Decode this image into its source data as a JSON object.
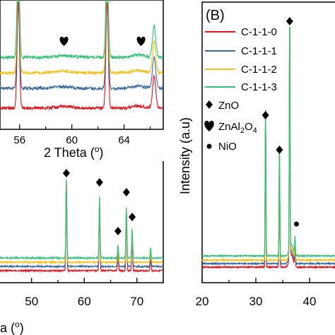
{
  "colors": {
    "C-1-1-0": "#e0121c",
    "C-1-1-1": "#3a6aa0",
    "C-1-1-2": "#f2c21b",
    "C-1-1-3": "#35c07a",
    "axis": "#000000"
  },
  "markers": {
    "ZnO": "diamond-icon",
    "ZnAl2O4": "heart-icon",
    "NiO": "circle-icon"
  },
  "chart_data": [
    {
      "panel": "A (partially visible, left)",
      "type": "line",
      "xlabel_visible_fragment": "a (o)",
      "x_ticks": [
        "50",
        "60",
        "70"
      ],
      "xlim": [
        44,
        75
      ],
      "series": [
        {
          "name": "C-1-1-0",
          "x": [
            44,
            56.6,
            62.9,
            66.4,
            68.0,
            69.1,
            72.6,
            75
          ],
          "y": [
            0.0,
            0.72,
            0.55,
            0.13,
            0.47,
            0.28,
            0.1,
            0.0
          ]
        },
        {
          "name": "C-1-1-1",
          "x": [
            44,
            56.6,
            62.9,
            66.4,
            68.0,
            69.1,
            72.6,
            75
          ],
          "y": [
            0.02,
            0.74,
            0.57,
            0.15,
            0.49,
            0.3,
            0.12,
            0.02
          ]
        },
        {
          "name": "C-1-1-2",
          "x": [
            44,
            56.6,
            62.9,
            66.4,
            68.0,
            69.1,
            72.6,
            75
          ],
          "y": [
            0.04,
            0.76,
            0.59,
            0.17,
            0.51,
            0.32,
            0.14,
            0.04
          ]
        },
        {
          "name": "C-1-1-3",
          "x": [
            44,
            56.6,
            62.9,
            66.4,
            68.0,
            69.1,
            72.6,
            75
          ],
          "y": [
            0.06,
            0.78,
            0.61,
            0.19,
            0.53,
            0.34,
            0.16,
            0.06
          ]
        }
      ],
      "annotations": [
        {
          "marker": "ZnO",
          "x": 56.6
        },
        {
          "marker": "ZnO",
          "x": 62.9
        },
        {
          "marker": "ZnO",
          "x": 66.4
        },
        {
          "marker": "ZnO",
          "x": 68.0
        },
        {
          "marker": "ZnO",
          "x": 69.1
        }
      ]
    },
    {
      "panel": "A inset",
      "type": "line",
      "xlabel": "2 Theta (o)",
      "x_ticks": [
        "56",
        "60",
        "64"
      ],
      "xlim": [
        54.5,
        67
      ],
      "series": [
        {
          "name": "C-1-1-0",
          "baseline": 0.2
        },
        {
          "name": "C-1-1-1",
          "baseline": 0.38
        },
        {
          "name": "C-1-1-2",
          "baseline": 0.52
        },
        {
          "name": "C-1-1-3",
          "baseline": 0.66
        }
      ],
      "peaks": [
        56.6,
        62.9,
        66.4
      ],
      "annotations": [
        {
          "marker": "ZnAl2O4",
          "x": 59.4
        },
        {
          "marker": "ZnAl2O4",
          "x": 65.3
        }
      ]
    },
    {
      "panel": "B",
      "type": "line",
      "panel_label": "(B)",
      "ylabel": "Intensity (a.u)",
      "x_ticks": [
        "20",
        "30",
        "40"
      ],
      "xlim": [
        20,
        45
      ],
      "legend": [
        "C-1-1-0",
        "C-1-1-1",
        "C-1-1-2",
        "C-1-1-3"
      ],
      "marker_legend": [
        {
          "marker": "ZnO",
          "label": "ZnO"
        },
        {
          "marker": "ZnAl2O4",
          "label": "ZnAl2O4"
        },
        {
          "marker": "NiO",
          "label": "NiO"
        }
      ],
      "peaks": [
        {
          "x": 31.8,
          "height": 0.62
        },
        {
          "x": 34.4,
          "height": 0.46
        },
        {
          "x": 36.3,
          "height": 0.98
        },
        {
          "x": 37.3,
          "height": 0.08
        }
      ],
      "annotations": [
        {
          "marker": "ZnO",
          "x": 31.8
        },
        {
          "marker": "ZnO",
          "x": 34.4
        },
        {
          "marker": "ZnO",
          "x": 36.3
        },
        {
          "marker": "NiO",
          "x": 37.3
        }
      ]
    }
  ],
  "labels": {
    "panel_b": "(B)",
    "ylabel_b": "Intensity (a.u)",
    "inset_xlabel": "2 Theta (",
    "inset_xlabel_sup": "o",
    "inset_xlabel_end": ")",
    "a_xlabel": "a (",
    "a_xlabel_sup": "o",
    "a_xlabel_end": ")",
    "legend_series": [
      "C-1-1-0",
      "C-1-1-1",
      "C-1-1-2",
      "C-1-1-3"
    ],
    "legend_zno": "ZnO",
    "legend_znal_main": "ZnAl",
    "legend_znal_sub1": "2",
    "legend_znal_mid": "O",
    "legend_znal_sub2": "4",
    "legend_nio": "NiO",
    "a_ticks": [
      "50",
      "60",
      "70"
    ],
    "inset_ticks": [
      "56",
      "60",
      "64"
    ],
    "b_ticks": [
      "20",
      "30",
      "40"
    ]
  }
}
